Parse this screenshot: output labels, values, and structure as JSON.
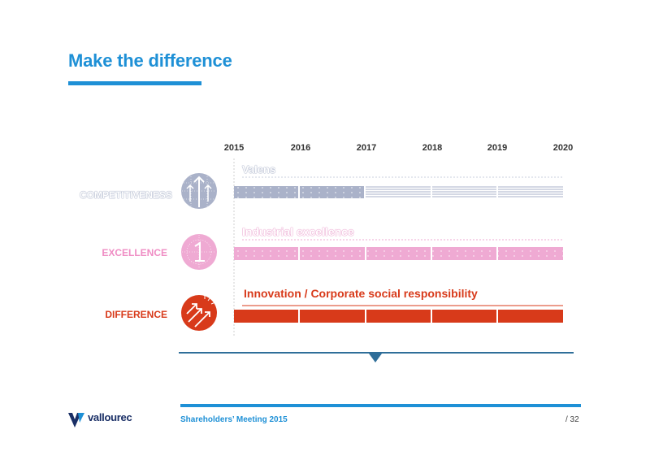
{
  "header": {
    "title": "Make the difference"
  },
  "timeline": {
    "years": [
      "2015",
      "2016",
      "2017",
      "2018",
      "2019",
      "2020"
    ]
  },
  "rows": [
    {
      "label": "COMPETITIVENESS",
      "track_title": "Valens",
      "color": "#98a2bd",
      "icon": "arrows-up-globe-icon"
    },
    {
      "label": "EXCELLENCE",
      "track_title": "Industrial excellence",
      "color": "#ef8dc4",
      "icon": "one-globe-icon"
    },
    {
      "label": "DIFFERENCE",
      "track_title": "Innovation / Corporate social responsibility",
      "color": "#d83a1a",
      "icon": "rising-arrows-icon"
    }
  ],
  "footer": {
    "logo": "vallourec",
    "meeting": "Shareholders’ Meeting 2015",
    "page": "/ 32"
  },
  "colors": {
    "accent": "#1e90d6",
    "navy": "#1a2f66",
    "timeline_line": "#2f6e99"
  }
}
